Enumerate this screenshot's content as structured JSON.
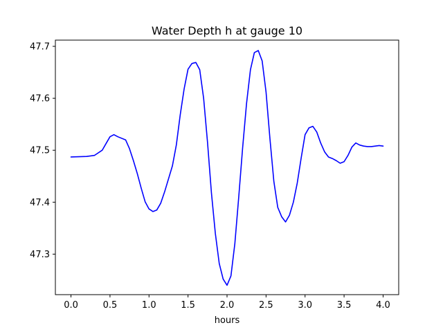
{
  "chart_data": {
    "type": "line",
    "title": "Water Depth h at gauge 10",
    "xlabel": "hours",
    "ylabel": "",
    "xlim": [
      -0.2,
      4.2
    ],
    "ylim": [
      47.222,
      47.712
    ],
    "grid": false,
    "x_ticks": [
      0.0,
      0.5,
      1.0,
      1.5,
      2.0,
      2.5,
      3.0,
      3.5,
      4.0
    ],
    "x_tick_labels": [
      "0.0",
      "0.5",
      "1.0",
      "1.5",
      "2.0",
      "2.5",
      "3.0",
      "3.5",
      "4.0"
    ],
    "y_ticks": [
      47.3,
      47.4,
      47.5,
      47.6,
      47.7
    ],
    "y_tick_labels": [
      "47.3",
      "47.4",
      "47.5",
      "47.6",
      "47.7"
    ],
    "series": [
      {
        "color": "#0000ff",
        "x": [
          0.0,
          0.2,
          0.3,
          0.4,
          0.45,
          0.5,
          0.55,
          0.6,
          0.7,
          0.75,
          0.8,
          0.85,
          0.9,
          0.95,
          1.0,
          1.05,
          1.1,
          1.15,
          1.2,
          1.3,
          1.35,
          1.4,
          1.45,
          1.5,
          1.55,
          1.6,
          1.65,
          1.7,
          1.75,
          1.8,
          1.85,
          1.9,
          1.95,
          2.0,
          2.05,
          2.1,
          2.15,
          2.2,
          2.25,
          2.3,
          2.35,
          2.4,
          2.45,
          2.5,
          2.55,
          2.6,
          2.65,
          2.7,
          2.75,
          2.8,
          2.85,
          2.9,
          2.95,
          3.0,
          3.05,
          3.1,
          3.15,
          3.2,
          3.25,
          3.3,
          3.35,
          3.4,
          3.45,
          3.5,
          3.55,
          3.6,
          3.65,
          3.7,
          3.75,
          3.8,
          3.85,
          3.9,
          3.95,
          4.0
        ],
        "y": [
          47.487,
          47.488,
          47.49,
          47.5,
          47.513,
          47.526,
          47.53,
          47.526,
          47.52,
          47.503,
          47.48,
          47.455,
          47.427,
          47.401,
          47.387,
          47.382,
          47.385,
          47.398,
          47.42,
          47.47,
          47.51,
          47.568,
          47.618,
          47.656,
          47.667,
          47.669,
          47.655,
          47.6,
          47.515,
          47.418,
          47.34,
          47.282,
          47.252,
          47.24,
          47.258,
          47.32,
          47.41,
          47.505,
          47.59,
          47.655,
          47.688,
          47.692,
          47.672,
          47.612,
          47.522,
          47.44,
          47.39,
          47.372,
          47.362,
          47.375,
          47.4,
          47.437,
          47.485,
          47.53,
          47.543,
          47.546,
          47.535,
          47.514,
          47.497,
          47.487,
          47.484,
          47.48,
          47.475,
          47.478,
          47.49,
          47.506,
          47.514,
          47.51,
          47.508,
          47.507,
          47.507,
          47.508,
          47.509,
          47.508
        ]
      }
    ]
  }
}
